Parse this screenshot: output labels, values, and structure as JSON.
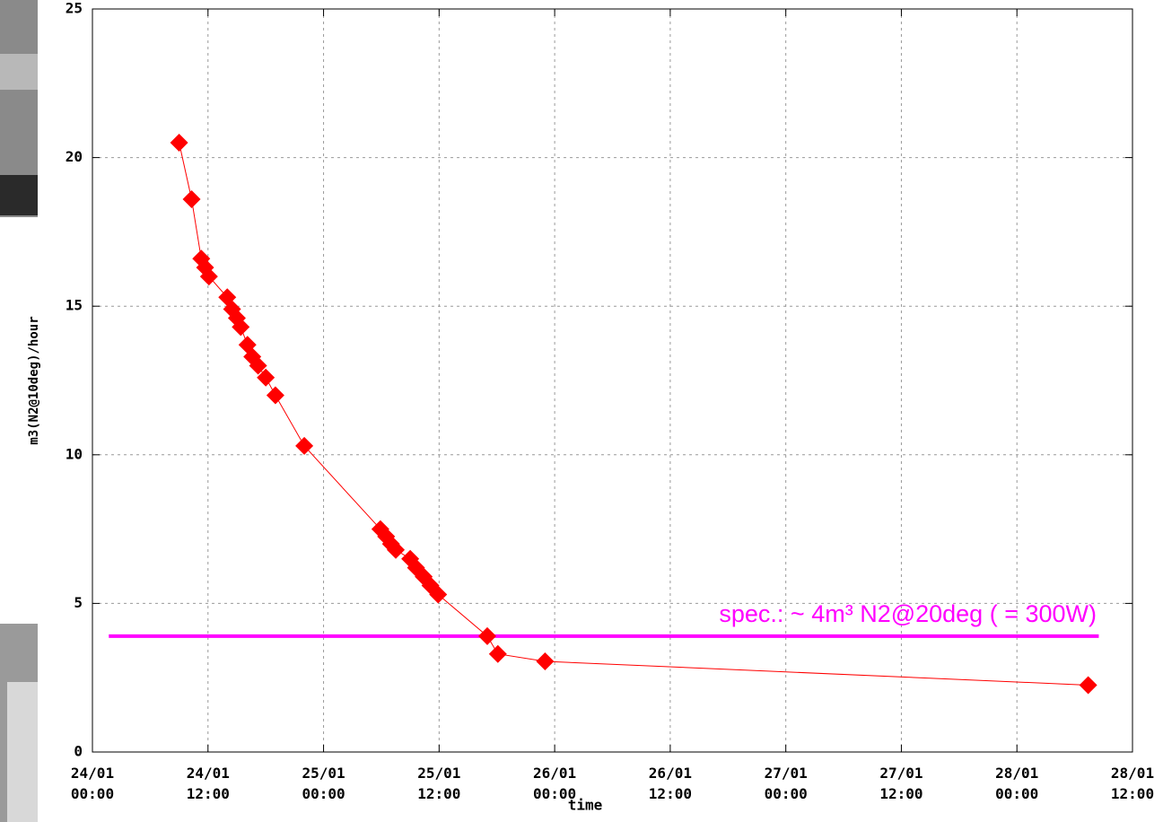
{
  "chart_data": {
    "type": "line",
    "ylabel": "m3(N2@10deg)/hour",
    "xlabel": "time",
    "annotation": "spec.: ~ 4m³ N2@20deg ( = 300W)",
    "reference_line": {
      "value": 3.9,
      "xrange": [
        1.7,
        104.5
      ],
      "color": "#ff00ff"
    },
    "xlim": [
      0,
      108
    ],
    "ylim": [
      0,
      25
    ],
    "xticks": [
      {
        "value": 0,
        "label": "24/01 00:00"
      },
      {
        "value": 12,
        "label": "24/01 12:00"
      },
      {
        "value": 24,
        "label": "25/01 00:00"
      },
      {
        "value": 36,
        "label": "25/01 12:00"
      },
      {
        "value": 48,
        "label": "26/01 00:00"
      },
      {
        "value": 60,
        "label": "26/01 12:00"
      },
      {
        "value": 72,
        "label": "27/01 00:00"
      },
      {
        "value": 84,
        "label": "27/01 12:00"
      },
      {
        "value": 96,
        "label": "28/01 00:00"
      },
      {
        "value": 108,
        "label": "28/01 12:00"
      }
    ],
    "yticks": [
      0,
      5,
      10,
      15,
      20,
      25
    ],
    "grid": true,
    "series": [
      {
        "color": "#ff0000",
        "x": [
          9.0,
          10.3,
          11.3,
          11.7,
          12.1,
          14.0,
          14.5,
          15.0,
          15.4,
          16.1,
          16.6,
          17.2,
          18.0,
          19.0,
          22.0,
          29.9,
          30.5,
          31.0,
          31.5,
          33.0,
          33.6,
          34.4,
          35.1,
          35.9,
          41.0,
          42.1,
          47.0,
          103.4
        ],
        "values": [
          20.5,
          18.6,
          16.6,
          16.3,
          16.0,
          15.3,
          14.9,
          14.6,
          14.3,
          13.7,
          13.3,
          13.0,
          12.6,
          12.0,
          10.3,
          7.5,
          7.25,
          7.0,
          6.8,
          6.5,
          6.2,
          5.9,
          5.6,
          5.3,
          3.9,
          3.3,
          3.05,
          2.25
        ]
      }
    ]
  }
}
